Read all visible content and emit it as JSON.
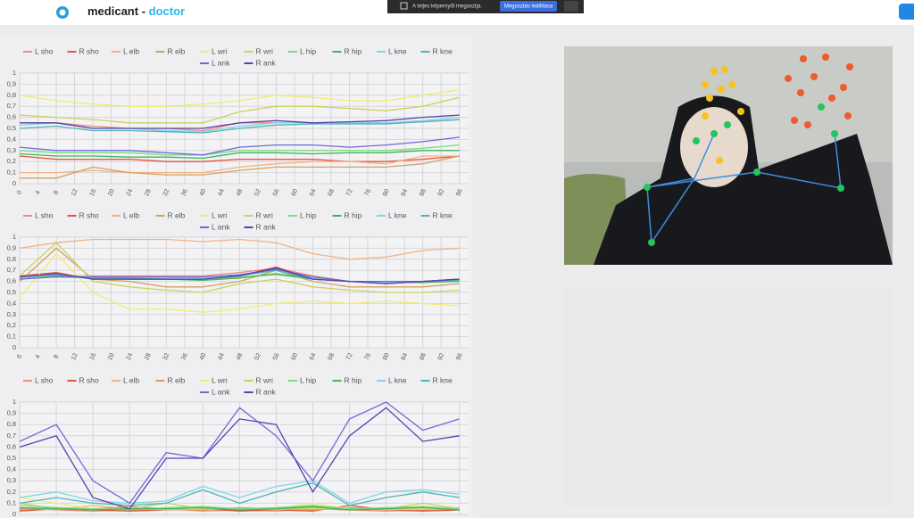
{
  "header": {
    "brand": "medicant",
    "separator": "-",
    "role": "doctor"
  },
  "share_bar": {
    "message": "A teljes képernyőt megosztja.",
    "button": "Megosztás leállítása"
  },
  "chart_data": [
    {
      "type": "line",
      "xlim": [
        0,
        98
      ],
      "ylim": [
        0,
        1
      ],
      "grid": true,
      "x": [
        0,
        8,
        16,
        24,
        32,
        40,
        48,
        56,
        64,
        72,
        80,
        88,
        96
      ],
      "xticks": [
        0,
        4,
        8,
        12,
        16,
        20,
        24,
        28,
        32,
        36,
        40,
        44,
        48,
        52,
        56,
        60,
        64,
        68,
        72,
        76,
        80,
        84,
        88,
        92,
        96
      ],
      "yticks": [
        0,
        {
          "value": 0.1,
          "label": "0,1"
        },
        {
          "value": 0.2,
          "label": "0,2"
        },
        {
          "value": 0.3,
          "label": "0,3"
        },
        {
          "value": 0.4,
          "label": "0,4"
        },
        {
          "value": 0.5,
          "label": "0,5"
        },
        {
          "value": 0.6,
          "label": "0,6"
        },
        {
          "value": 0.7,
          "label": "0,7"
        },
        {
          "value": 0.8,
          "label": "0,8"
        },
        {
          "value": 0.9,
          "label": "0,9"
        },
        1
      ],
      "series": [
        {
          "name": "L sho",
          "color": "#f08a80",
          "values": [
            0.55,
            0.55,
            0.52,
            0.5,
            0.5,
            0.48,
            0.55,
            0.55,
            0.55,
            0.55,
            0.55,
            0.56,
            0.58
          ]
        },
        {
          "name": "R sho",
          "color": "#e5533f",
          "values": [
            0.25,
            0.22,
            0.22,
            0.22,
            0.2,
            0.2,
            0.22,
            0.22,
            0.22,
            0.2,
            0.2,
            0.22,
            0.25
          ]
        },
        {
          "name": "L elb",
          "color": "#f4b183",
          "values": [
            0.1,
            0.1,
            0.12,
            0.1,
            0.1,
            0.1,
            0.15,
            0.18,
            0.2,
            0.2,
            0.18,
            0.25,
            0.25
          ]
        },
        {
          "name": "R elb",
          "color": "#d4a060",
          "values": [
            0.05,
            0.05,
            0.15,
            0.1,
            0.08,
            0.08,
            0.12,
            0.15,
            0.15,
            0.15,
            0.15,
            0.18,
            0.25
          ]
        },
        {
          "name": "L wri",
          "color": "#f2ec6e",
          "values": [
            0.8,
            0.75,
            0.72,
            0.7,
            0.7,
            0.72,
            0.75,
            0.8,
            0.78,
            0.75,
            0.75,
            0.8,
            0.85
          ]
        },
        {
          "name": "R wri",
          "color": "#c8d458",
          "values": [
            0.62,
            0.6,
            0.58,
            0.55,
            0.55,
            0.55,
            0.65,
            0.7,
            0.7,
            0.68,
            0.66,
            0.7,
            0.78
          ]
        },
        {
          "name": "L hip",
          "color": "#7edb7e",
          "values": [
            0.3,
            0.28,
            0.28,
            0.28,
            0.26,
            0.26,
            0.3,
            0.3,
            0.3,
            0.3,
            0.3,
            0.32,
            0.35
          ]
        },
        {
          "name": "R hip",
          "color": "#3cb55c",
          "values": [
            0.27,
            0.25,
            0.25,
            0.24,
            0.24,
            0.23,
            0.28,
            0.28,
            0.27,
            0.28,
            0.28,
            0.3,
            0.3
          ]
        },
        {
          "name": "L kne",
          "color": "#7fd6e6",
          "values": [
            0.53,
            0.55,
            0.5,
            0.5,
            0.48,
            0.47,
            0.52,
            0.55,
            0.55,
            0.55,
            0.55,
            0.57,
            0.6
          ]
        },
        {
          "name": "R kne",
          "color": "#4fb3b3",
          "values": [
            0.5,
            0.52,
            0.48,
            0.48,
            0.47,
            0.46,
            0.5,
            0.53,
            0.54,
            0.54,
            0.54,
            0.56,
            0.58
          ]
        },
        {
          "name": "L ank",
          "color": "#6b6bdc",
          "values": [
            0.33,
            0.3,
            0.3,
            0.3,
            0.28,
            0.26,
            0.33,
            0.35,
            0.35,
            0.33,
            0.35,
            0.38,
            0.42
          ]
        },
        {
          "name": "R ank",
          "color": "#5a3fb0",
          "values": [
            0.55,
            0.55,
            0.5,
            0.5,
            0.5,
            0.5,
            0.55,
            0.57,
            0.55,
            0.56,
            0.57,
            0.6,
            0.62
          ]
        }
      ]
    },
    {
      "type": "line",
      "xlim": [
        0,
        98
      ],
      "ylim": [
        0,
        1
      ],
      "grid": true,
      "x": [
        0,
        8,
        16,
        24,
        32,
        40,
        48,
        56,
        64,
        72,
        80,
        88,
        96
      ],
      "xticks": [
        0,
        4,
        8,
        12,
        16,
        20,
        24,
        28,
        32,
        36,
        40,
        44,
        48,
        52,
        56,
        60,
        64,
        68,
        72,
        76,
        80,
        84,
        88,
        92,
        96
      ],
      "yticks": [
        0,
        {
          "value": 0.1,
          "label": "0,1"
        },
        {
          "value": 0.2,
          "label": "0,2"
        },
        {
          "value": 0.3,
          "label": "0,3"
        },
        {
          "value": 0.4,
          "label": "0,4"
        },
        {
          "value": 0.5,
          "label": "0,5"
        },
        {
          "value": 0.6,
          "label": "0,6"
        },
        {
          "value": 0.7,
          "label": "0,7"
        },
        {
          "value": 0.8,
          "label": "0,8"
        },
        {
          "value": 0.9,
          "label": "0,9"
        },
        1
      ],
      "series": [
        {
          "name": "L sho",
          "color": "#f08a80",
          "values": [
            0.62,
            0.65,
            0.65,
            0.65,
            0.65,
            0.65,
            0.68,
            0.72,
            0.65,
            0.6,
            0.6,
            0.6,
            0.62
          ]
        },
        {
          "name": "R sho",
          "color": "#e5533f",
          "values": [
            0.65,
            0.68,
            0.62,
            0.62,
            0.62,
            0.62,
            0.65,
            0.73,
            0.62,
            0.6,
            0.58,
            0.6,
            0.62
          ]
        },
        {
          "name": "L elb",
          "color": "#f4b183",
          "values": [
            0.9,
            0.95,
            0.98,
            0.98,
            0.98,
            0.96,
            0.98,
            0.95,
            0.85,
            0.8,
            0.82,
            0.88,
            0.9
          ]
        },
        {
          "name": "R elb",
          "color": "#d4a060",
          "values": [
            0.6,
            0.9,
            0.62,
            0.6,
            0.55,
            0.55,
            0.6,
            0.7,
            0.6,
            0.55,
            0.55,
            0.55,
            0.58
          ]
        },
        {
          "name": "L wri",
          "color": "#f2ec6e",
          "values": [
            0.45,
            0.85,
            0.5,
            0.35,
            0.35,
            0.32,
            0.35,
            0.4,
            0.42,
            0.4,
            0.42,
            0.4,
            0.38
          ]
        },
        {
          "name": "R wri",
          "color": "#c8d458",
          "values": [
            0.65,
            0.95,
            0.6,
            0.55,
            0.52,
            0.5,
            0.58,
            0.62,
            0.55,
            0.52,
            0.5,
            0.5,
            0.52
          ]
        },
        {
          "name": "L hip",
          "color": "#7edb7e",
          "values": [
            0.63,
            0.64,
            0.63,
            0.63,
            0.62,
            0.62,
            0.64,
            0.66,
            0.62,
            0.6,
            0.59,
            0.6,
            0.61
          ]
        },
        {
          "name": "R hip",
          "color": "#3cb55c",
          "values": [
            0.64,
            0.65,
            0.63,
            0.62,
            0.62,
            0.61,
            0.63,
            0.67,
            0.62,
            0.6,
            0.59,
            0.59,
            0.6
          ]
        },
        {
          "name": "L kne",
          "color": "#7fd6e6",
          "values": [
            0.63,
            0.66,
            0.64,
            0.63,
            0.63,
            0.63,
            0.66,
            0.7,
            0.63,
            0.6,
            0.59,
            0.6,
            0.62
          ]
        },
        {
          "name": "R kne",
          "color": "#4fb3b3",
          "values": [
            0.64,
            0.66,
            0.63,
            0.63,
            0.62,
            0.62,
            0.65,
            0.7,
            0.62,
            0.6,
            0.58,
            0.6,
            0.61
          ]
        },
        {
          "name": "L ank",
          "color": "#6b6bdc",
          "values": [
            0.62,
            0.64,
            0.64,
            0.64,
            0.64,
            0.64,
            0.66,
            0.71,
            0.64,
            0.6,
            0.6,
            0.6,
            0.62
          ]
        },
        {
          "name": "R ank",
          "color": "#5a3fb0",
          "values": [
            0.64,
            0.67,
            0.62,
            0.62,
            0.62,
            0.62,
            0.65,
            0.72,
            0.62,
            0.6,
            0.58,
            0.6,
            0.62
          ]
        }
      ]
    },
    {
      "type": "line",
      "xlim": [
        0,
        98
      ],
      "ylim": [
        0,
        1
      ],
      "grid": true,
      "x": [
        0,
        8,
        16,
        24,
        32,
        40,
        48,
        56,
        64,
        72,
        80,
        88,
        96
      ],
      "yticks": [
        0,
        {
          "value": 0.1,
          "label": "0,1"
        },
        {
          "value": 0.2,
          "label": "0,2"
        },
        {
          "value": 0.3,
          "label": "0,3"
        },
        {
          "value": 0.4,
          "label": "0,4"
        },
        {
          "value": 0.5,
          "label": "0,5"
        },
        {
          "value": 0.6,
          "label": "0,6"
        },
        {
          "value": 0.7,
          "label": "0,7"
        },
        {
          "value": 0.8,
          "label": "0,8"
        },
        {
          "value": 0.9,
          "label": "0,9"
        },
        1
      ],
      "series": [
        {
          "name": "L sho",
          "color": "#f08a80",
          "values": [
            0.05,
            0.04,
            0.03,
            0.04,
            0.05,
            0.03,
            0.04,
            0.03,
            0.05,
            0.04,
            0.03,
            0.04,
            0.05
          ]
        },
        {
          "name": "R sho",
          "color": "#e5533f",
          "values": [
            0.03,
            0.05,
            0.04,
            0.03,
            0.04,
            0.05,
            0.03,
            0.04,
            0.03,
            0.08,
            0.04,
            0.03,
            0.04
          ]
        },
        {
          "name": "L elb",
          "color": "#f4b183",
          "values": [
            0.06,
            0.04,
            0.08,
            0.05,
            0.04,
            0.06,
            0.05,
            0.04,
            0.06,
            0.05,
            0.04,
            0.05,
            0.06
          ]
        },
        {
          "name": "R elb",
          "color": "#d4a060",
          "values": [
            0.04,
            0.06,
            0.05,
            0.07,
            0.05,
            0.04,
            0.06,
            0.05,
            0.04,
            0.06,
            0.05,
            0.06,
            0.04
          ]
        },
        {
          "name": "L wri",
          "color": "#f2ec6e",
          "values": [
            0.15,
            0.1,
            0.05,
            0.05,
            0.05,
            0.05,
            0.05,
            0.05,
            0.1,
            0.05,
            0.05,
            0.05,
            0.05
          ]
        },
        {
          "name": "R wri",
          "color": "#c8d458",
          "values": [
            0.1,
            0.05,
            0.05,
            0.05,
            0.1,
            0.05,
            0.05,
            0.05,
            0.05,
            0.05,
            0.05,
            0.1,
            0.05
          ]
        },
        {
          "name": "L hip",
          "color": "#7edb7e",
          "values": [
            0.08,
            0.06,
            0.05,
            0.04,
            0.06,
            0.07,
            0.05,
            0.06,
            0.08,
            0.05,
            0.06,
            0.07,
            0.05
          ]
        },
        {
          "name": "R hip",
          "color": "#3cb55c",
          "values": [
            0.06,
            0.05,
            0.04,
            0.05,
            0.05,
            0.06,
            0.04,
            0.05,
            0.07,
            0.04,
            0.05,
            0.06,
            0.04
          ]
        },
        {
          "name": "L kne",
          "color": "#7fd6e6",
          "values": [
            0.15,
            0.2,
            0.12,
            0.1,
            0.12,
            0.25,
            0.15,
            0.25,
            0.3,
            0.1,
            0.2,
            0.22,
            0.18
          ]
        },
        {
          "name": "R kne",
          "color": "#4fb3b3",
          "values": [
            0.1,
            0.15,
            0.1,
            0.08,
            0.1,
            0.22,
            0.1,
            0.2,
            0.28,
            0.08,
            0.15,
            0.2,
            0.15
          ]
        },
        {
          "name": "L ank",
          "color": "#6b6bdc",
          "values": [
            0.65,
            0.8,
            0.3,
            0.1,
            0.55,
            0.5,
            0.95,
            0.7,
            0.3,
            0.85,
            1,
            0.75,
            0.85
          ]
        },
        {
          "name": "R ank",
          "color": "#5a3fb0",
          "values": [
            0.6,
            0.7,
            0.15,
            0.05,
            0.5,
            0.5,
            0.85,
            0.8,
            0.2,
            0.7,
            0.95,
            0.65,
            0.7
          ]
        }
      ]
    }
  ]
}
